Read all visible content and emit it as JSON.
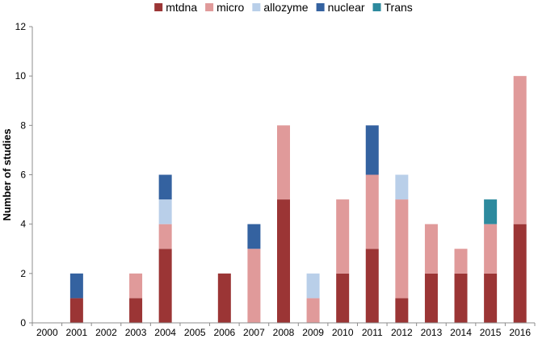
{
  "chart_data": {
    "type": "bar",
    "stacked": true,
    "title": "",
    "xlabel": "",
    "ylabel": "Number of studies",
    "ylim": [
      0,
      12
    ],
    "yticks": [
      0,
      2,
      4,
      6,
      8,
      10,
      12
    ],
    "grid": false,
    "legend_position": "top-center",
    "categories": [
      "2000",
      "2001",
      "2002",
      "2003",
      "2004",
      "2005",
      "2006",
      "2007",
      "2008",
      "2009",
      "2010",
      "2011",
      "2012",
      "2013",
      "2014",
      "2015",
      "2016"
    ],
    "series": [
      {
        "name": "mtdna",
        "color": "#9b3535",
        "values": [
          0,
          1,
          0,
          1,
          3,
          0,
          2,
          0,
          5,
          0,
          2,
          3,
          1,
          2,
          2,
          2,
          4
        ]
      },
      {
        "name": "micro",
        "color": "#e09a9a",
        "values": [
          0,
          0,
          0,
          1,
          1,
          0,
          0,
          3,
          3,
          1,
          3,
          3,
          4,
          2,
          1,
          2,
          6
        ]
      },
      {
        "name": "allozyme",
        "color": "#b9cfe9",
        "values": [
          0,
          0,
          0,
          0,
          1,
          0,
          0,
          0,
          0,
          1,
          0,
          0,
          1,
          0,
          0,
          0,
          0
        ]
      },
      {
        "name": "nuclear",
        "color": "#3462a0",
        "values": [
          0,
          1,
          0,
          0,
          1,
          0,
          0,
          1,
          0,
          0,
          0,
          2,
          0,
          0,
          0,
          0,
          0
        ]
      },
      {
        "name": "Trans",
        "color": "#2d8a9e",
        "values": [
          0,
          0,
          0,
          0,
          0,
          0,
          0,
          0,
          0,
          0,
          0,
          0,
          0,
          0,
          0,
          1,
          0
        ]
      }
    ]
  }
}
